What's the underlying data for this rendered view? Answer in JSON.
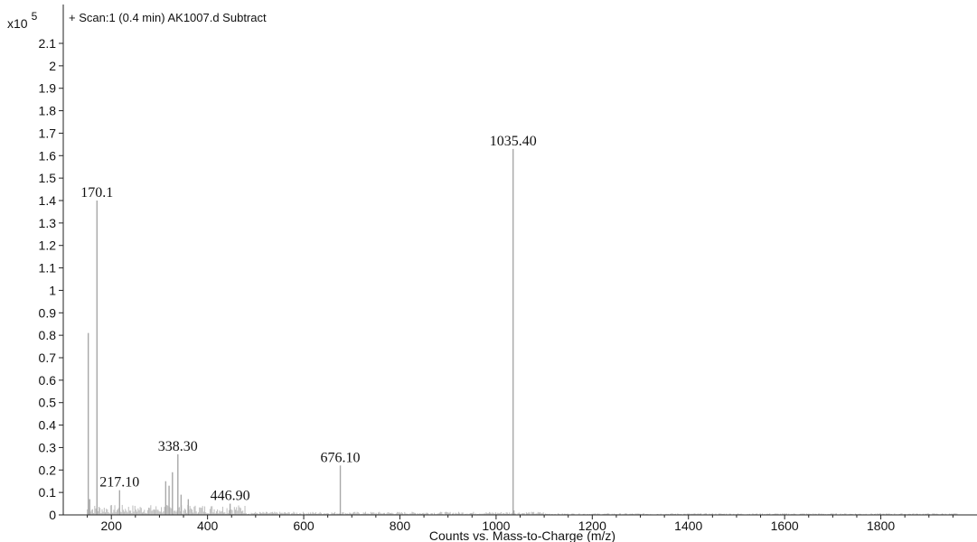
{
  "chart_data": {
    "type": "bar",
    "title": "+ Scan:1 (0.4 min) AK1007.d  Subtract",
    "xlabel": "Counts vs. Mass-to-Charge (m/z)",
    "ylabel": "",
    "y_multiplier": {
      "base": "x10",
      "exponent": "5"
    },
    "xlim": [
      100,
      2000
    ],
    "ylim": [
      0,
      2.2
    ],
    "x_ticks": [
      200,
      400,
      600,
      800,
      1000,
      1200,
      1400,
      1600,
      1800
    ],
    "y_ticks": [
      0,
      0.1,
      0.2,
      0.3,
      0.4,
      0.5,
      0.6,
      0.7,
      0.8,
      0.9,
      1,
      1.1,
      1.2,
      1.3,
      1.4,
      1.5,
      1.6,
      1.7,
      1.8,
      1.9,
      2,
      2.1
    ],
    "grid": false,
    "peaks": [
      {
        "mz": 152,
        "intensity": 0.81
      },
      {
        "mz": 155,
        "intensity": 0.07
      },
      {
        "mz": 170.1,
        "intensity": 1.4,
        "label": "170.1"
      },
      {
        "mz": 217.1,
        "intensity": 0.11,
        "label": "217.10"
      },
      {
        "mz": 313,
        "intensity": 0.15
      },
      {
        "mz": 320,
        "intensity": 0.13
      },
      {
        "mz": 327,
        "intensity": 0.19
      },
      {
        "mz": 338.3,
        "intensity": 0.27,
        "label": "338.30"
      },
      {
        "mz": 345,
        "intensity": 0.09
      },
      {
        "mz": 360,
        "intensity": 0.07
      },
      {
        "mz": 446.9,
        "intensity": 0.05,
        "label": "446.90"
      },
      {
        "mz": 676.1,
        "intensity": 0.22,
        "label": "676.10"
      },
      {
        "mz": 1035.4,
        "intensity": 1.63,
        "label": "1035.40"
      },
      {
        "mz": 1037,
        "intensity": 0.02
      }
    ]
  }
}
